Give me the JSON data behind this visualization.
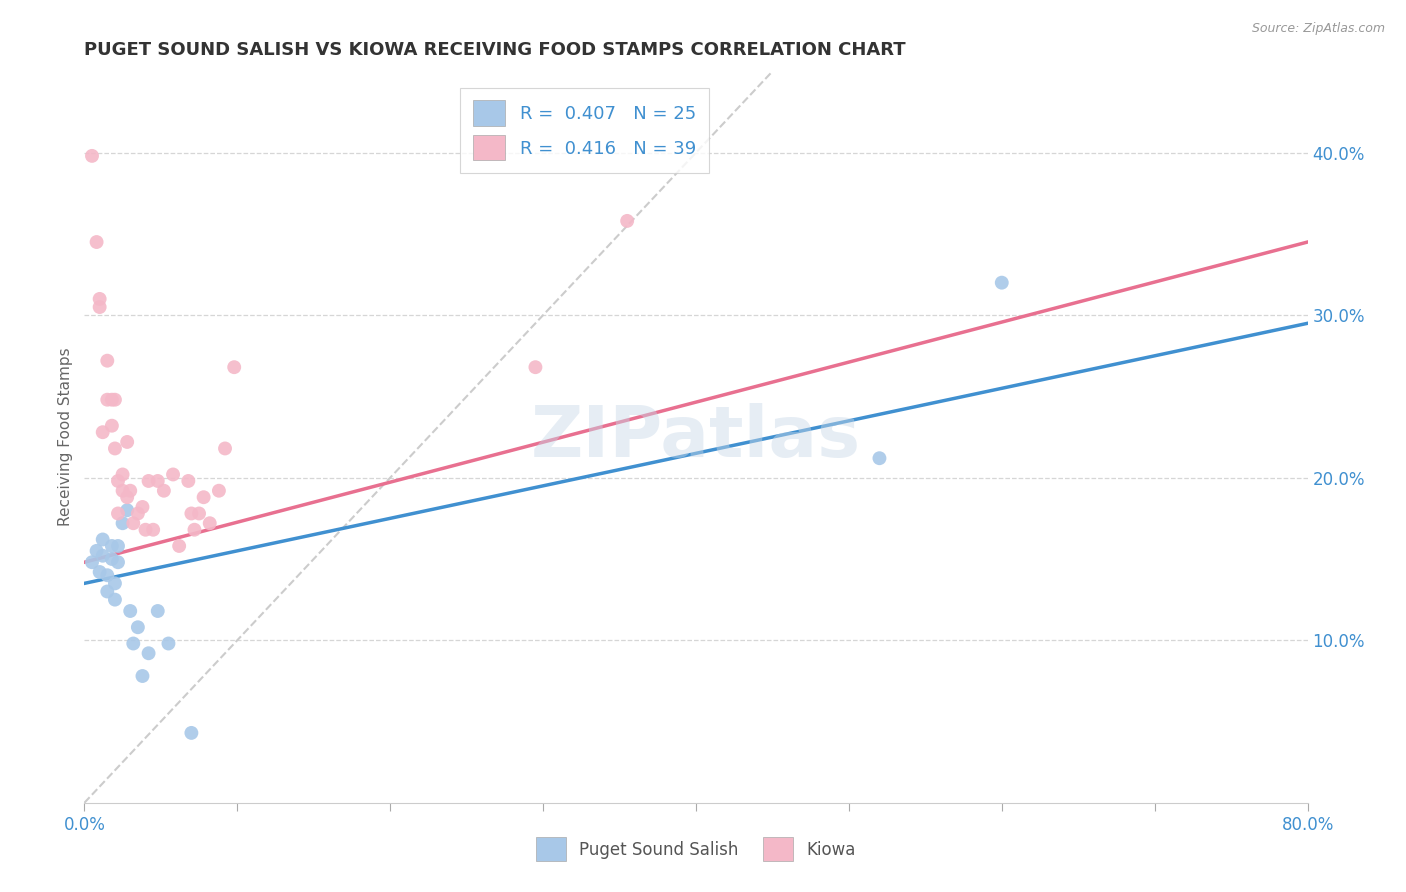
{
  "title": "PUGET SOUND SALISH VS KIOWA RECEIVING FOOD STAMPS CORRELATION CHART",
  "source": "Source: ZipAtlas.com",
  "ylabel": "Receiving Food Stamps",
  "xlim": [
    0.0,
    0.8
  ],
  "ylim": [
    0.0,
    0.45
  ],
  "yticks_right": [
    0.1,
    0.2,
    0.3,
    0.4
  ],
  "yticklabels_right": [
    "10.0%",
    "20.0%",
    "30.0%",
    "40.0%"
  ],
  "legend_r1": "R =  0.407   N = 25",
  "legend_r2": "R =  0.416   N = 39",
  "legend_label1": "Puget Sound Salish",
  "legend_label2": "Kiowa",
  "color_blue": "#a8c8e8",
  "color_pink": "#f4b8c8",
  "color_blue_dark": "#4090d0",
  "color_pink_dark": "#e87090",
  "watermark": "ZIPatlas",
  "blue_points_x": [
    0.005,
    0.008,
    0.01,
    0.012,
    0.012,
    0.015,
    0.015,
    0.018,
    0.018,
    0.02,
    0.02,
    0.022,
    0.022,
    0.025,
    0.028,
    0.03,
    0.032,
    0.035,
    0.038,
    0.042,
    0.048,
    0.055,
    0.07,
    0.52,
    0.6
  ],
  "blue_points_y": [
    0.148,
    0.155,
    0.142,
    0.152,
    0.162,
    0.13,
    0.14,
    0.15,
    0.158,
    0.125,
    0.135,
    0.148,
    0.158,
    0.172,
    0.18,
    0.118,
    0.098,
    0.108,
    0.078,
    0.092,
    0.118,
    0.098,
    0.043,
    0.212,
    0.32
  ],
  "pink_points_x": [
    0.005,
    0.008,
    0.01,
    0.01,
    0.012,
    0.015,
    0.015,
    0.018,
    0.018,
    0.02,
    0.02,
    0.022,
    0.022,
    0.025,
    0.025,
    0.028,
    0.028,
    0.03,
    0.032,
    0.035,
    0.038,
    0.04,
    0.042,
    0.045,
    0.048,
    0.052,
    0.058,
    0.062,
    0.068,
    0.07,
    0.072,
    0.075,
    0.078,
    0.082,
    0.088,
    0.092,
    0.098,
    0.295,
    0.355
  ],
  "pink_points_y": [
    0.398,
    0.345,
    0.305,
    0.31,
    0.228,
    0.272,
    0.248,
    0.248,
    0.232,
    0.248,
    0.218,
    0.198,
    0.178,
    0.192,
    0.202,
    0.188,
    0.222,
    0.192,
    0.172,
    0.178,
    0.182,
    0.168,
    0.198,
    0.168,
    0.198,
    0.192,
    0.202,
    0.158,
    0.198,
    0.178,
    0.168,
    0.178,
    0.188,
    0.172,
    0.192,
    0.218,
    0.268,
    0.268,
    0.358
  ],
  "blue_trend_x": [
    0.0,
    0.8
  ],
  "blue_trend_y": [
    0.135,
    0.295
  ],
  "pink_trend_x": [
    0.0,
    0.8
  ],
  "pink_trend_y": [
    0.148,
    0.345
  ],
  "diag_line_x": [
    0.0,
    0.45
  ],
  "diag_line_y": [
    0.0,
    0.45
  ]
}
